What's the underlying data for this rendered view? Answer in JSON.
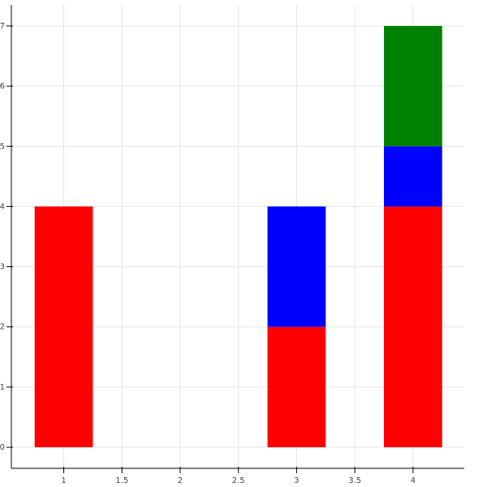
{
  "chart_data": {
    "type": "bar",
    "stacked": true,
    "x": [
      1,
      3,
      4
    ],
    "bar_width": 0.5,
    "series": [
      {
        "color": "#ff0000",
        "values": [
          4,
          2,
          4
        ]
      },
      {
        "color": "#0000ff",
        "values": [
          0,
          2,
          1
        ]
      },
      {
        "color": "#008000",
        "values": [
          0,
          0,
          2
        ]
      }
    ],
    "xlim": [
      0.55,
      4.44
    ],
    "xticks": [
      1,
      1.5,
      2,
      2.5,
      3,
      3.5,
      4
    ],
    "ylim": [
      -0.35,
      7.35
    ],
    "yticks": [
      0,
      1,
      2,
      3,
      4,
      5,
      6,
      7
    ],
    "grid": true
  }
}
